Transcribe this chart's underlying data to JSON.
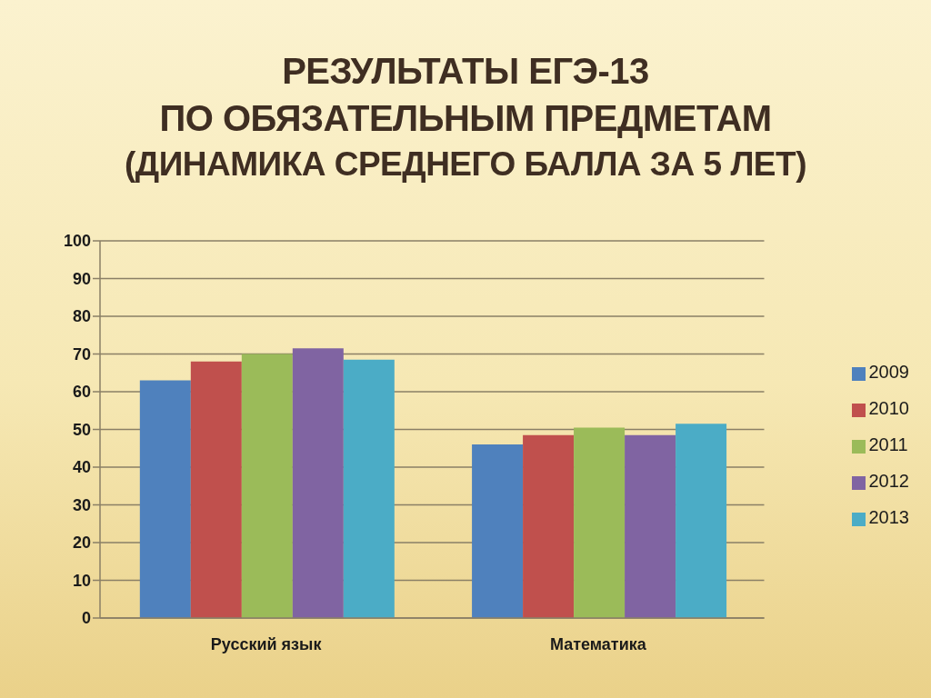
{
  "chart_data": {
    "type": "bar",
    "title": "РЕЗУЛЬТАТЫ ЕГЭ-13\nПО ОБЯЗАТЕЛЬНЫМ ПРЕДМЕТАМ",
    "subtitle": "(ДИНАМИКА СРЕДНЕГО БАЛЛА ЗА 5 ЛЕТ)",
    "categories": [
      "Русский язык",
      "Математика"
    ],
    "series": [
      {
        "name": "2009",
        "color": "#4f81bd",
        "values": [
          63,
          46
        ]
      },
      {
        "name": "2010",
        "color": "#c0504d",
        "values": [
          68,
          48.5
        ]
      },
      {
        "name": "2011",
        "color": "#9bbb59",
        "values": [
          70,
          50.5
        ]
      },
      {
        "name": "2012",
        "color": "#8064a2",
        "values": [
          71.5,
          48.5
        ]
      },
      {
        "name": "2013",
        "color": "#4bacc6",
        "values": [
          68.5,
          51.5
        ]
      }
    ],
    "ylim": [
      0,
      100
    ],
    "yticks": [
      0,
      10,
      20,
      30,
      40,
      50,
      60,
      70,
      80,
      90,
      100
    ],
    "grid": "y",
    "legend": "right"
  }
}
